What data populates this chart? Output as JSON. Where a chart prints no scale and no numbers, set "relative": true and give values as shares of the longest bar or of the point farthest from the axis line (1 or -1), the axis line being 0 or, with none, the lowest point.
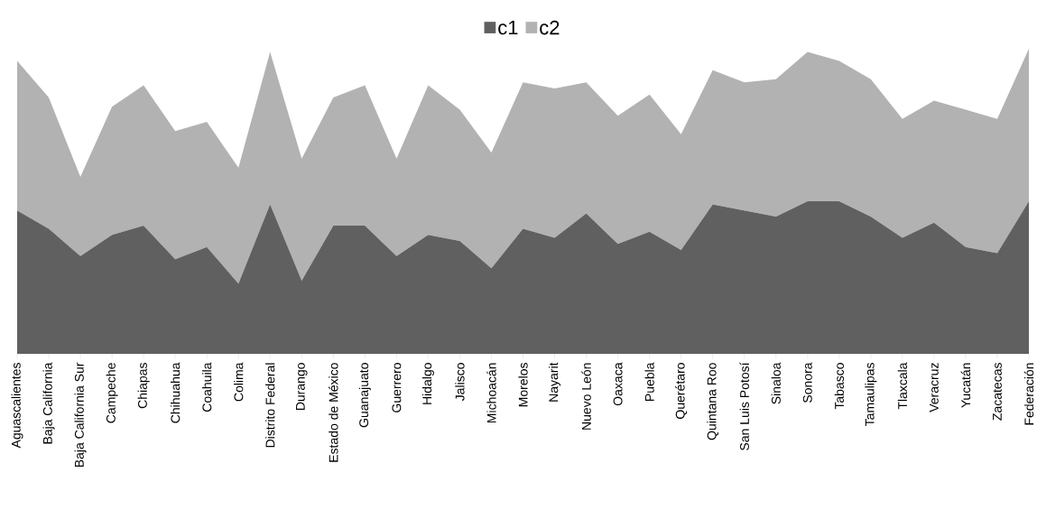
{
  "chart_data": {
    "type": "area",
    "stacked": true,
    "relative": true,
    "legend": "top",
    "categories": [
      "Aguascalientes",
      "Baja California",
      "Baja California Sur",
      "Campeche",
      "Chiapas",
      "Chihuahua",
      "Coahuila",
      "Colima",
      "Distrito Federal",
      "Durango",
      "Estado de México",
      "Guanajuato",
      "Guerrero",
      "Hidalgo",
      "Jalisco",
      "Michoacán",
      "Morelos",
      "Nayarit",
      "Nuevo León",
      "Oaxaca",
      "Puebla",
      "Querétaro",
      "Quintana Roo",
      "San Luis Potosí",
      "Sinaloa",
      "Sonora",
      "Tabasco",
      "Tamaulipas",
      "Tlaxcala",
      "Veracruz",
      "Yucatán",
      "Zacatecas",
      "Federación"
    ],
    "series": [
      {
        "name": "c1",
        "color": "#606060",
        "values": [
          0.47,
          0.41,
          0.32,
          0.39,
          0.42,
          0.31,
          0.35,
          0.23,
          0.49,
          0.24,
          0.42,
          0.42,
          0.32,
          0.39,
          0.37,
          0.28,
          0.41,
          0.38,
          0.46,
          0.36,
          0.4,
          0.34,
          0.49,
          0.47,
          0.45,
          0.5,
          0.5,
          0.45,
          0.38,
          0.43,
          0.35,
          0.33,
          0.5
        ]
      },
      {
        "name": "c2",
        "color": "#b2b2b2",
        "values": [
          0.49,
          0.43,
          0.26,
          0.42,
          0.46,
          0.42,
          0.41,
          0.38,
          0.5,
          0.4,
          0.42,
          0.46,
          0.32,
          0.49,
          0.43,
          0.38,
          0.48,
          0.49,
          0.43,
          0.42,
          0.45,
          0.38,
          0.44,
          0.42,
          0.45,
          0.49,
          0.46,
          0.45,
          0.39,
          0.4,
          0.45,
          0.44,
          0.5
        ]
      }
    ]
  }
}
